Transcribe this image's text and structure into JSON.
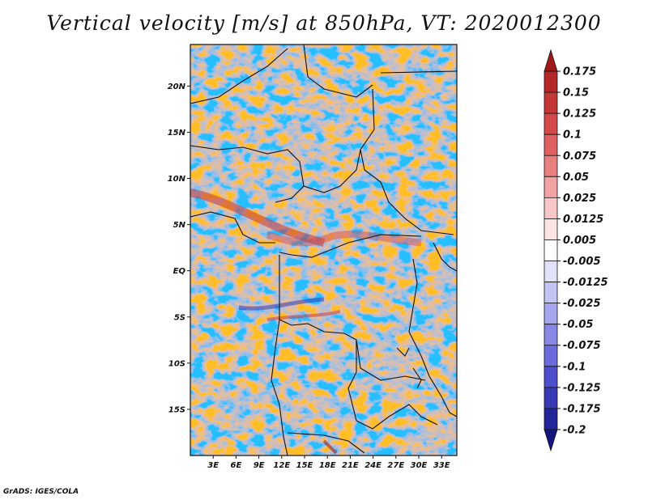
{
  "chart_data": {
    "type": "heatmap",
    "title": "Vertical velocity [m/s] at 850hPa, VT: 2020012300",
    "variable": "Vertical velocity",
    "units": "m/s",
    "level": "850hPa",
    "valid_time": "2020012300",
    "x_ticks": [
      "3E",
      "6E",
      "9E",
      "12E",
      "15E",
      "18E",
      "21E",
      "24E",
      "27E",
      "30E",
      "33E"
    ],
    "x_tick_values": [
      3,
      6,
      9,
      12,
      15,
      18,
      21,
      24,
      27,
      30,
      33
    ],
    "y_ticks": [
      "20N",
      "15N",
      "10N",
      "5N",
      "EQ",
      "5S",
      "10S",
      "15S"
    ],
    "y_tick_values": [
      20,
      15,
      10,
      5,
      0,
      -5,
      -10,
      -15
    ],
    "xlim": [
      0,
      35
    ],
    "ylim": [
      -20,
      24.5
    ],
    "colorbar": {
      "levels": [
        "0.175",
        "0.15",
        "0.125",
        "0.1",
        "0.075",
        "0.05",
        "0.025",
        "0.0125",
        "0.005",
        "-0.005",
        "-0.0125",
        "-0.025",
        "-0.05",
        "-0.075",
        "-0.1",
        "-0.125",
        "-0.175",
        "-0.2"
      ],
      "colors": [
        "#a01a1a",
        "#b52626",
        "#c53636",
        "#d44848",
        "#df6060",
        "#e87f7f",
        "#f2a2a2",
        "#f8c6c6",
        "#fde4e4",
        "#ffffff",
        "#e2e2fb",
        "#c4c4f4",
        "#a5a5ee",
        "#8787e6",
        "#6b6bde",
        "#4f4fce",
        "#3838b4",
        "#24249a",
        "#14147e"
      ]
    }
  },
  "footer": {
    "credit": "GrADS: IGES/COLA"
  }
}
